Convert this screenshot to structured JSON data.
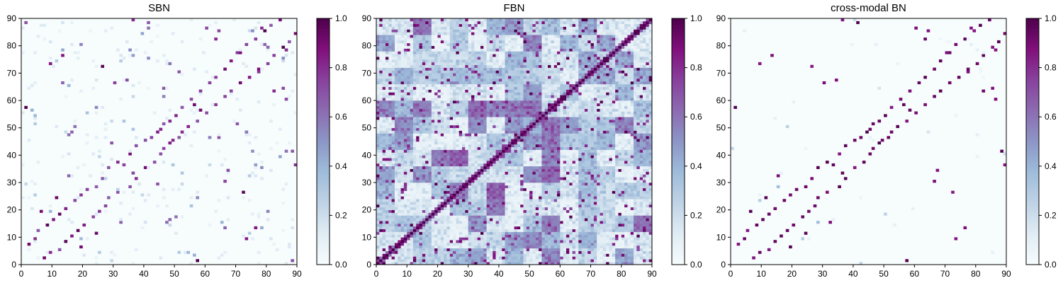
{
  "chart_data": [
    {
      "type": "heatmap",
      "title": "SBN",
      "xlabel": "",
      "ylabel": "",
      "xlim": [
        0,
        90
      ],
      "ylim": [
        0,
        90
      ],
      "x_ticks": [
        "0",
        "10",
        "20",
        "30",
        "40",
        "50",
        "60",
        "70",
        "80",
        "90"
      ],
      "y_ticks": [
        "0",
        "10",
        "20",
        "30",
        "40",
        "50",
        "60",
        "70",
        "80",
        "90"
      ],
      "colorbar": {
        "range": [
          0.0,
          1.0
        ],
        "ticks": [
          "0.0",
          "0.2",
          "0.4",
          "0.6",
          "0.8",
          "1.0"
        ]
      },
      "colormap": "BuPu",
      "matrix_size": 90,
      "density": "sparse",
      "seed": 11,
      "strong_pairs": [
        [
          2,
          7
        ],
        [
          4,
          9
        ],
        [
          5,
          12
        ],
        [
          8,
          14
        ],
        [
          10,
          16
        ],
        [
          12,
          18
        ],
        [
          14,
          20
        ],
        [
          17,
          23
        ],
        [
          19,
          25
        ],
        [
          21,
          27
        ],
        [
          24,
          28
        ],
        [
          26,
          31
        ],
        [
          28,
          35
        ],
        [
          31,
          37
        ],
        [
          33,
          36
        ],
        [
          35,
          40
        ],
        [
          37,
          43
        ],
        [
          40,
          45
        ],
        [
          42,
          46
        ],
        [
          44,
          48
        ],
        [
          46,
          51
        ],
        [
          48,
          52
        ],
        [
          50,
          54
        ],
        [
          52,
          57
        ],
        [
          55,
          60
        ],
        [
          58,
          63
        ],
        [
          61,
          66
        ],
        [
          63,
          68
        ],
        [
          66,
          71
        ],
        [
          68,
          74
        ],
        [
          71,
          77
        ],
        [
          73,
          80
        ],
        [
          76,
          82
        ],
        [
          79,
          85
        ],
        [
          81,
          87
        ],
        [
          84,
          89
        ],
        [
          1,
          57
        ],
        [
          9,
          73
        ],
        [
          13,
          76
        ],
        [
          26,
          72
        ],
        [
          30,
          66
        ],
        [
          34,
          67
        ],
        [
          36,
          89
        ],
        [
          41,
          88
        ],
        [
          45,
          49
        ],
        [
          56,
          58
        ],
        [
          60,
          86
        ],
        [
          63,
          82
        ],
        [
          64,
          85
        ],
        [
          70,
          77
        ],
        [
          78,
          86
        ],
        [
          6,
          19
        ],
        [
          11,
          24
        ],
        [
          15,
          32
        ]
      ]
    },
    {
      "type": "heatmap",
      "title": "FBN",
      "xlabel": "",
      "ylabel": "",
      "xlim": [
        0,
        90
      ],
      "ylim": [
        0,
        90
      ],
      "x_ticks": [
        "0",
        "10",
        "20",
        "30",
        "40",
        "50",
        "60",
        "70",
        "80",
        "90"
      ],
      "y_ticks": [
        "0",
        "10",
        "20",
        "30",
        "40",
        "50",
        "60",
        "70",
        "80",
        "90"
      ],
      "colorbar": {
        "range": [
          0.0,
          1.0
        ],
        "ticks": [
          "0.0",
          "0.2",
          "0.4",
          "0.6",
          "0.8",
          "1.0"
        ]
      },
      "colormap": "BuPu",
      "matrix_size": 90,
      "density": "dense",
      "seed": 23,
      "strong_pairs": [
        [
          2,
          3
        ],
        [
          4,
          5
        ],
        [
          6,
          7
        ],
        [
          8,
          9
        ],
        [
          10,
          11
        ],
        [
          12,
          13
        ],
        [
          24,
          25
        ],
        [
          26,
          27
        ],
        [
          28,
          29
        ],
        [
          40,
          41
        ],
        [
          42,
          43
        ],
        [
          44,
          45
        ],
        [
          56,
          57
        ],
        [
          58,
          59
        ],
        [
          60,
          61
        ],
        [
          62,
          63
        ],
        [
          64,
          65
        ],
        [
          72,
          73
        ],
        [
          74,
          75
        ],
        [
          76,
          77
        ],
        [
          78,
          79
        ],
        [
          80,
          81
        ],
        [
          84,
          85
        ],
        [
          86,
          87
        ],
        [
          3,
          30
        ],
        [
          7,
          44
        ],
        [
          15,
          60
        ],
        [
          20,
          83
        ],
        [
          33,
          69
        ],
        [
          48,
          75
        ],
        [
          52,
          88
        ],
        [
          5,
          85
        ],
        [
          26,
          55
        ],
        [
          38,
          66
        ]
      ]
    },
    {
      "type": "heatmap",
      "title": "cross-modal BN",
      "xlabel": "",
      "ylabel": "",
      "xlim": [
        0,
        90
      ],
      "ylim": [
        0,
        90
      ],
      "x_ticks": [
        "0",
        "10",
        "20",
        "30",
        "40",
        "50",
        "60",
        "70",
        "80",
        "90"
      ],
      "y_ticks": [
        "0",
        "10",
        "20",
        "30",
        "40",
        "50",
        "60",
        "70",
        "80",
        "90"
      ],
      "colorbar": {
        "range": [
          0.0,
          1.0
        ],
        "ticks": [
          "0.0",
          "0.2",
          "0.4",
          "0.6",
          "0.8",
          "1.0"
        ]
      },
      "colormap": "BuPu",
      "matrix_size": 90,
      "density": "very_sparse",
      "seed": 37,
      "strong_pairs": [
        [
          2,
          7
        ],
        [
          4,
          9
        ],
        [
          5,
          12
        ],
        [
          8,
          14
        ],
        [
          10,
          16
        ],
        [
          12,
          18
        ],
        [
          14,
          20
        ],
        [
          17,
          23
        ],
        [
          19,
          25
        ],
        [
          21,
          27
        ],
        [
          24,
          28
        ],
        [
          26,
          31
        ],
        [
          28,
          35
        ],
        [
          31,
          37
        ],
        [
          33,
          36
        ],
        [
          35,
          40
        ],
        [
          37,
          43
        ],
        [
          40,
          45
        ],
        [
          42,
          46
        ],
        [
          44,
          48
        ],
        [
          46,
          51
        ],
        [
          48,
          52
        ],
        [
          50,
          54
        ],
        [
          52,
          57
        ],
        [
          55,
          60
        ],
        [
          58,
          63
        ],
        [
          61,
          66
        ],
        [
          63,
          68
        ],
        [
          66,
          71
        ],
        [
          68,
          74
        ],
        [
          71,
          77
        ],
        [
          73,
          80
        ],
        [
          76,
          82
        ],
        [
          79,
          85
        ],
        [
          81,
          87
        ],
        [
          84,
          89
        ],
        [
          1,
          57
        ],
        [
          9,
          73
        ],
        [
          13,
          76
        ],
        [
          26,
          72
        ],
        [
          30,
          66
        ],
        [
          34,
          67
        ],
        [
          36,
          89
        ],
        [
          41,
          88
        ],
        [
          45,
          49
        ],
        [
          56,
          58
        ],
        [
          60,
          86
        ],
        [
          63,
          82
        ],
        [
          64,
          85
        ],
        [
          70,
          77
        ],
        [
          78,
          86
        ],
        [
          6,
          19
        ],
        [
          11,
          24
        ],
        [
          15,
          32
        ]
      ]
    }
  ]
}
